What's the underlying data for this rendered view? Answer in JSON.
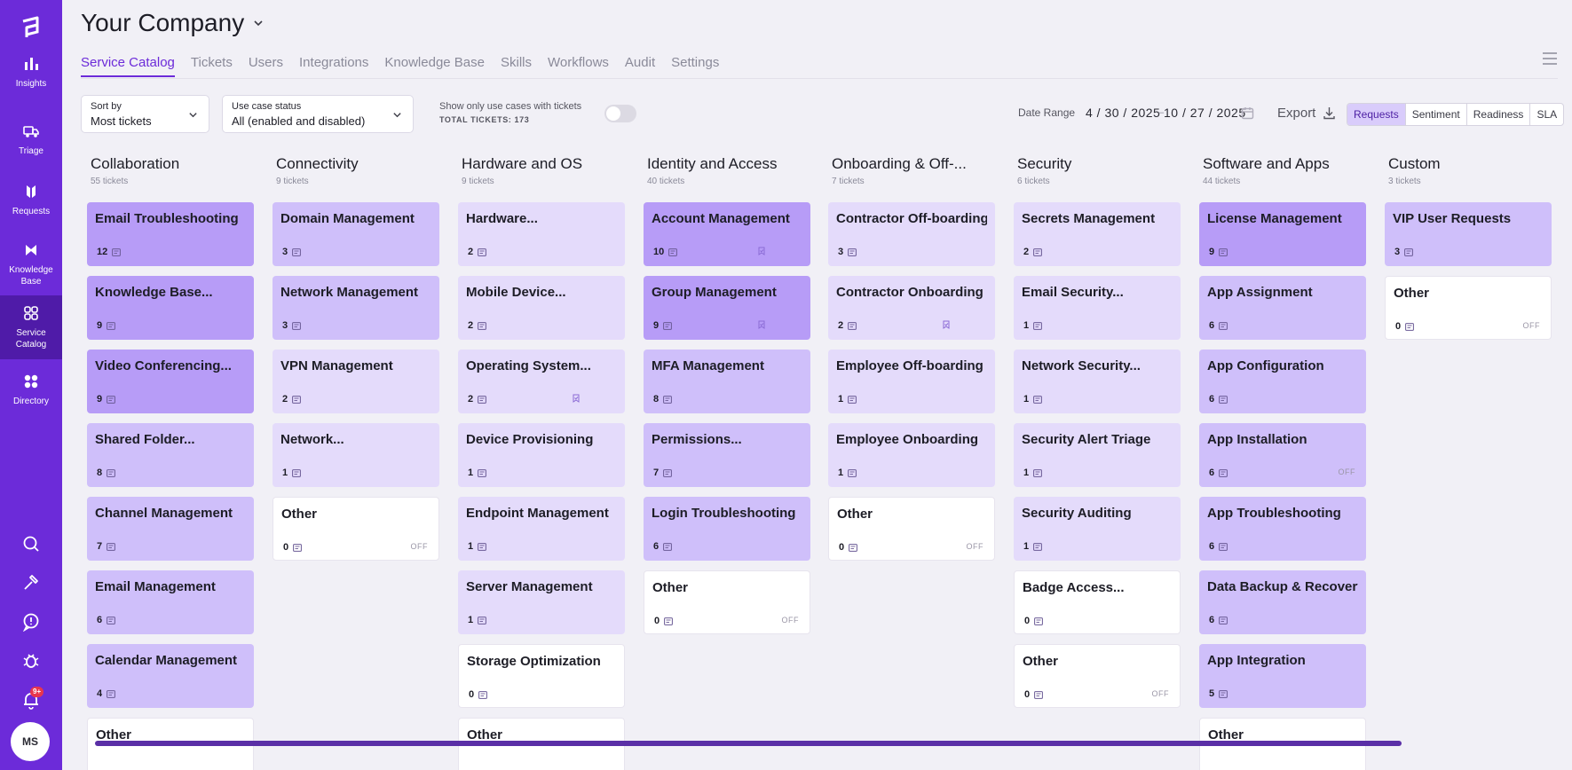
{
  "sidebar": {
    "items": [
      {
        "label": "Insights",
        "icon": "bar-chart-icon"
      },
      {
        "label": "Triage",
        "icon": "truck-icon"
      },
      {
        "label": "Requests",
        "icon": "requests-icon"
      },
      {
        "label": "Knowledge Base",
        "icon": "knowledge-icon"
      },
      {
        "label": "Service Catalog",
        "icon": "catalog-icon"
      },
      {
        "label": "Directory",
        "icon": "grid-icon"
      }
    ],
    "notification_badge": "9+",
    "avatar_initials": "MS"
  },
  "header": {
    "company": "Your Company",
    "tabs": [
      "Service Catalog",
      "Tickets",
      "Users",
      "Integrations",
      "Knowledge Base",
      "Skills",
      "Workflows",
      "Audit",
      "Settings"
    ],
    "active_tab": "Service Catalog"
  },
  "filters": {
    "sort_label": "Sort by",
    "sort_value": "Most tickets",
    "status_label": "Use case status",
    "status_value": "All (enabled and disabled)",
    "toggle_label": "Show only use cases with tickets",
    "total_tickets": "TOTAL TICKETS: 173",
    "date_range_label": "Date Range",
    "date_from": "4 / 30 / 2025",
    "date_sep": "–",
    "date_to": "10 / 27 / 2025",
    "export_label": "Export",
    "views": [
      "Requests",
      "Sentiment",
      "Readiness",
      "SLA"
    ],
    "active_view": "Requests"
  },
  "columns": [
    {
      "title": "Collaboration",
      "count": "55 tickets",
      "cards": [
        {
          "title": "Email Troubleshooting",
          "n": "12",
          "lvl": 1
        },
        {
          "title": "Knowledge Base...",
          "n": "9",
          "lvl": 1
        },
        {
          "title": "Video Conferencing...",
          "n": "9",
          "lvl": 1
        },
        {
          "title": "Shared Folder...",
          "n": "8",
          "lvl": 2
        },
        {
          "title": "Channel Management",
          "n": "7",
          "lvl": 2
        },
        {
          "title": "Email Management",
          "n": "6",
          "lvl": 2
        },
        {
          "title": "Calendar Management",
          "n": "4",
          "lvl": 2
        },
        {
          "title": "Other",
          "n": "",
          "lvl": 4
        }
      ]
    },
    {
      "title": "Connectivity",
      "count": "9 tickets",
      "cards": [
        {
          "title": "Domain Management",
          "n": "3",
          "lvl": 2
        },
        {
          "title": "Network Management",
          "n": "3",
          "lvl": 2
        },
        {
          "title": "VPN Management",
          "n": "2",
          "lvl": 3
        },
        {
          "title": "Network...",
          "n": "1",
          "lvl": 3
        },
        {
          "title": "Other",
          "n": "0",
          "lvl": 4,
          "off": "OFF"
        }
      ]
    },
    {
      "title": "Hardware and OS",
      "count": "9 tickets",
      "cards": [
        {
          "title": "Hardware...",
          "n": "2",
          "lvl": 3
        },
        {
          "title": "Mobile Device...",
          "n": "2",
          "lvl": 3
        },
        {
          "title": "Operating System...",
          "n": "2",
          "lvl": 3,
          "extra": true
        },
        {
          "title": "Device Provisioning",
          "n": "1",
          "lvl": 3
        },
        {
          "title": "Endpoint Management",
          "n": "1",
          "lvl": 3
        },
        {
          "title": "Server Management",
          "n": "1",
          "lvl": 3
        },
        {
          "title": "Storage Optimization",
          "n": "0",
          "lvl": 4
        },
        {
          "title": "Other",
          "n": "",
          "lvl": 4
        }
      ]
    },
    {
      "title": "Identity and Access",
      "count": "40 tickets",
      "cards": [
        {
          "title": "Account Management",
          "n": "10",
          "lvl": 1,
          "extra": true
        },
        {
          "title": "Group Management",
          "n": "9",
          "lvl": 1,
          "extra": true
        },
        {
          "title": "MFA Management",
          "n": "8",
          "lvl": 2
        },
        {
          "title": "Permissions...",
          "n": "7",
          "lvl": 2
        },
        {
          "title": "Login Troubleshooting",
          "n": "6",
          "lvl": 2
        },
        {
          "title": "Other",
          "n": "0",
          "lvl": 4,
          "off": "OFF"
        }
      ]
    },
    {
      "title": "Onboarding & Off-...",
      "count": "7 tickets",
      "cards": [
        {
          "title": "Contractor Off-boarding",
          "n": "3",
          "lvl": 3
        },
        {
          "title": "Contractor Onboarding",
          "n": "2",
          "lvl": 3,
          "extra": true
        },
        {
          "title": "Employee Off-boarding",
          "n": "1",
          "lvl": 3
        },
        {
          "title": "Employee Onboarding",
          "n": "1",
          "lvl": 3
        },
        {
          "title": "Other",
          "n": "0",
          "lvl": 4,
          "off": "OFF"
        }
      ]
    },
    {
      "title": "Security",
      "count": "6 tickets",
      "cards": [
        {
          "title": "Secrets Management",
          "n": "2",
          "lvl": 3
        },
        {
          "title": "Email Security...",
          "n": "1",
          "lvl": 3
        },
        {
          "title": "Network Security...",
          "n": "1",
          "lvl": 3
        },
        {
          "title": "Security Alert Triage",
          "n": "1",
          "lvl": 3
        },
        {
          "title": "Security Auditing",
          "n": "1",
          "lvl": 3
        },
        {
          "title": "Badge Access...",
          "n": "0",
          "lvl": 4
        },
        {
          "title": "Other",
          "n": "0",
          "lvl": 4,
          "off": "OFF"
        }
      ]
    },
    {
      "title": "Software and Apps",
      "count": "44 tickets",
      "cards": [
        {
          "title": "License Management",
          "n": "9",
          "lvl": 1
        },
        {
          "title": "App Assignment",
          "n": "6",
          "lvl": 2
        },
        {
          "title": "App Configuration",
          "n": "6",
          "lvl": 2
        },
        {
          "title": "App Installation",
          "n": "6",
          "lvl": 2,
          "off": "OFF"
        },
        {
          "title": "App Troubleshooting",
          "n": "6",
          "lvl": 2
        },
        {
          "title": "Data Backup & Recovery",
          "n": "6",
          "lvl": 2
        },
        {
          "title": "App Integration",
          "n": "5",
          "lvl": 2
        },
        {
          "title": "Other",
          "n": "",
          "lvl": 4
        }
      ]
    },
    {
      "title": "Custom",
      "count": "3 tickets",
      "cards": [
        {
          "title": "VIP User Requests",
          "n": "3",
          "lvl": 2
        },
        {
          "title": "Other",
          "n": "0",
          "lvl": 4,
          "off": "OFF"
        }
      ]
    }
  ]
}
